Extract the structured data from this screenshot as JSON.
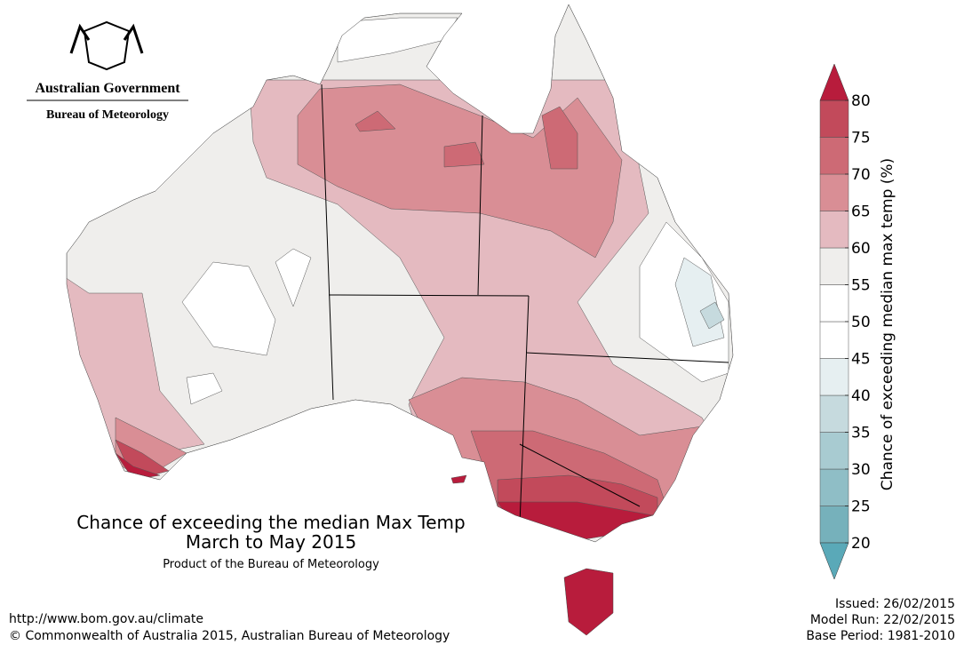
{
  "header": {
    "org": "Australian Government",
    "dept": "Bureau of Meteorology"
  },
  "map": {
    "title": "Chance of exceeding the median Max Temp",
    "period": "March to May 2015",
    "credit": "Product of the Bureau of Meteorology"
  },
  "legend": {
    "label": "Chance of exceeding median max temp (%)",
    "ticks": [
      20,
      25,
      30,
      35,
      40,
      45,
      50,
      55,
      60,
      65,
      70,
      75,
      80
    ],
    "colors": [
      "#76b1bb",
      "#8fbec6",
      "#a8cbd1",
      "#c6dade",
      "#e6eff1",
      "#ffffff",
      "#ffffff",
      "#efeeec",
      "#e4bac0",
      "#d98e95",
      "#cd6a75",
      "#c24a5b"
    ],
    "under_color": "#5aa9b8",
    "over_color": "#b81c3c"
  },
  "footer": {
    "url": "http://www.bom.gov.au/climate",
    "copyright": "© Commonwealth of Australia 2015, Australian Bureau of Meteorology",
    "issued": "Issued: 26/02/2015",
    "model_run": "Model Run: 22/02/2015",
    "base_period": "Base Period: 1981-2010"
  }
}
